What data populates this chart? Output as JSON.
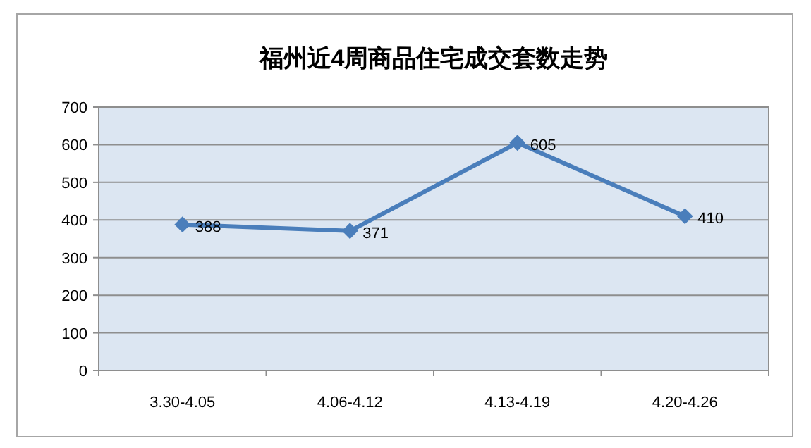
{
  "chart_data": {
    "type": "line",
    "title": "福州近4周商品住宅成交套数走势",
    "categories": [
      "3.30-4.05",
      "4.06-4.12",
      "4.13-4.19",
      "4.20-4.26"
    ],
    "series": [
      {
        "color": "#4a7ebb",
        "values": [
          388,
          371,
          605,
          410
        ]
      }
    ],
    "ylim": [
      0,
      700
    ],
    "yticks": [
      0,
      100,
      200,
      300,
      400,
      500,
      600,
      700
    ],
    "grid": "y",
    "marker": "diamond",
    "data_labels": true
  }
}
